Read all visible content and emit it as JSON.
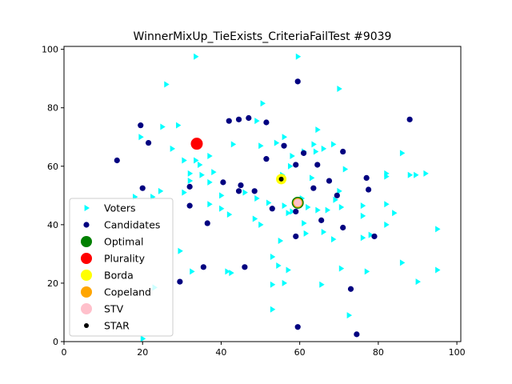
{
  "chart_data": {
    "type": "scatter",
    "title": "WinnerMixUp_TieExists_CriteriaFailTest #9039",
    "xlabel": "",
    "ylabel": "",
    "xlim": [
      0,
      101
    ],
    "ylim": [
      0,
      101
    ],
    "xticks": [
      0,
      20,
      40,
      60,
      80,
      100
    ],
    "yticks": [
      0,
      20,
      40,
      60,
      80,
      100
    ],
    "grid": false,
    "legend_position": "lower-left",
    "colors": {
      "voters": "#00ffff",
      "candidates": "#000080",
      "optimal": "#008000",
      "plurality": "#ff0000",
      "borda": "#ffff00",
      "copeland": "#ffa500",
      "stv": "#ffc0cb",
      "star": "#000000"
    },
    "series": [
      {
        "name": "Voters",
        "marker": "triangle-right",
        "points": [
          [
            33.5,
            97.5
          ],
          [
            59.5,
            97.5
          ],
          [
            26,
            88
          ],
          [
            70,
            86.5
          ],
          [
            50.5,
            81.5
          ],
          [
            49,
            75.5
          ],
          [
            63.5,
            67.5
          ],
          [
            25,
            73.5
          ],
          [
            29,
            74
          ],
          [
            19.5,
            70
          ],
          [
            27.5,
            66
          ],
          [
            43,
            67.5
          ],
          [
            50,
            67
          ],
          [
            54,
            68
          ],
          [
            56,
            70
          ],
          [
            64.5,
            72.5
          ],
          [
            61,
            65
          ],
          [
            64,
            65
          ],
          [
            66,
            66
          ],
          [
            68.5,
            67.5
          ],
          [
            71.5,
            59
          ],
          [
            58,
            63.5
          ],
          [
            57.5,
            60
          ],
          [
            63,
            56
          ],
          [
            55.5,
            57
          ],
          [
            30.5,
            62
          ],
          [
            33.5,
            62
          ],
          [
            34.5,
            60.5
          ],
          [
            37,
            63.5
          ],
          [
            38,
            58
          ],
          [
            35,
            57
          ],
          [
            32,
            57.5
          ],
          [
            32,
            55
          ],
          [
            40,
            50
          ],
          [
            37,
            54.5
          ],
          [
            24.5,
            51.5
          ],
          [
            22.5,
            49.5
          ],
          [
            18,
            49.5
          ],
          [
            30.5,
            51
          ],
          [
            37,
            47
          ],
          [
            40,
            45.5
          ],
          [
            42,
            43.5
          ],
          [
            46,
            51
          ],
          [
            49,
            49
          ],
          [
            48.5,
            42
          ],
          [
            50,
            40
          ],
          [
            52,
            47.5
          ],
          [
            56,
            46.5
          ],
          [
            58,
            44.5
          ],
          [
            60.5,
            49
          ],
          [
            62,
            46
          ],
          [
            57,
            44
          ],
          [
            61,
            40.5
          ],
          [
            64.5,
            45
          ],
          [
            67,
            45
          ],
          [
            70,
            51.5
          ],
          [
            69,
            48.5
          ],
          [
            70.5,
            46
          ],
          [
            76,
            46.5
          ],
          [
            76,
            43
          ],
          [
            82,
            47
          ],
          [
            84,
            44
          ],
          [
            82,
            40
          ],
          [
            68.5,
            35
          ],
          [
            76,
            35.5
          ],
          [
            66,
            37.5
          ],
          [
            61.5,
            37
          ],
          [
            55,
            34.5
          ],
          [
            53,
            29
          ],
          [
            54.5,
            26
          ],
          [
            57,
            24.5
          ],
          [
            53,
            19.5
          ],
          [
            56,
            20
          ],
          [
            53,
            11
          ],
          [
            65.5,
            19.5
          ],
          [
            70.5,
            25
          ],
          [
            77,
            24
          ],
          [
            86,
            27
          ],
          [
            90,
            20.5
          ],
          [
            95,
            24.5
          ],
          [
            95,
            38.5
          ],
          [
            92,
            57.5
          ],
          [
            89.5,
            57
          ],
          [
            88,
            57
          ],
          [
            86,
            64.5
          ],
          [
            82,
            57.5
          ],
          [
            82,
            56.5
          ],
          [
            78,
            36.5
          ],
          [
            42.5,
            23.5
          ],
          [
            41.5,
            24
          ],
          [
            32.5,
            24
          ],
          [
            29.5,
            31
          ],
          [
            23,
            18.5
          ],
          [
            20,
            1
          ],
          [
            72.5,
            9
          ]
        ]
      },
      {
        "name": "Candidates",
        "marker": "circle",
        "points": [
          [
            59.5,
            89
          ],
          [
            13.5,
            62
          ],
          [
            19.5,
            74
          ],
          [
            21.5,
            68
          ],
          [
            42,
            75.5
          ],
          [
            44.5,
            76
          ],
          [
            47,
            76.5
          ],
          [
            51.5,
            75
          ],
          [
            56,
            67
          ],
          [
            61,
            64.5
          ],
          [
            59,
            60.5
          ],
          [
            64.5,
            60.5
          ],
          [
            71,
            65
          ],
          [
            88,
            76
          ],
          [
            51.5,
            62.5
          ],
          [
            55,
            56
          ],
          [
            40.5,
            54.5
          ],
          [
            45,
            53.5
          ],
          [
            44.5,
            51.5
          ],
          [
            48.5,
            51.5
          ],
          [
            32,
            53
          ],
          [
            20,
            52.5
          ],
          [
            32,
            46.5
          ],
          [
            36.5,
            40.5
          ],
          [
            53,
            45.5
          ],
          [
            59,
            44.5
          ],
          [
            63.5,
            52.5
          ],
          [
            65.5,
            41.5
          ],
          [
            67.5,
            55
          ],
          [
            69.5,
            50
          ],
          [
            71,
            39
          ],
          [
            77,
            56
          ],
          [
            77.5,
            52
          ],
          [
            79,
            36
          ],
          [
            59,
            36
          ],
          [
            35.5,
            25.5
          ],
          [
            46,
            25.5
          ],
          [
            29.5,
            20.5
          ],
          [
            73,
            18
          ],
          [
            74.5,
            2.5
          ],
          [
            59.5,
            5
          ]
        ]
      },
      {
        "name": "Optimal",
        "marker": "circle",
        "points": [
          [
            59.5,
            47.5
          ]
        ]
      },
      {
        "name": "Plurality",
        "marker": "circle",
        "points": [
          [
            33.8,
            67.7
          ]
        ]
      },
      {
        "name": "Borda",
        "marker": "circle",
        "points": [
          [
            55.3,
            55.6
          ]
        ]
      },
      {
        "name": "Copeland",
        "marker": "circle",
        "points": [
          [
            59.5,
            47.5
          ]
        ]
      },
      {
        "name": "STV",
        "marker": "circle",
        "points": [
          [
            59.5,
            47.5
          ]
        ]
      },
      {
        "name": "STAR",
        "marker": "circle",
        "points": [
          [
            55.3,
            55.6
          ]
        ]
      }
    ]
  }
}
